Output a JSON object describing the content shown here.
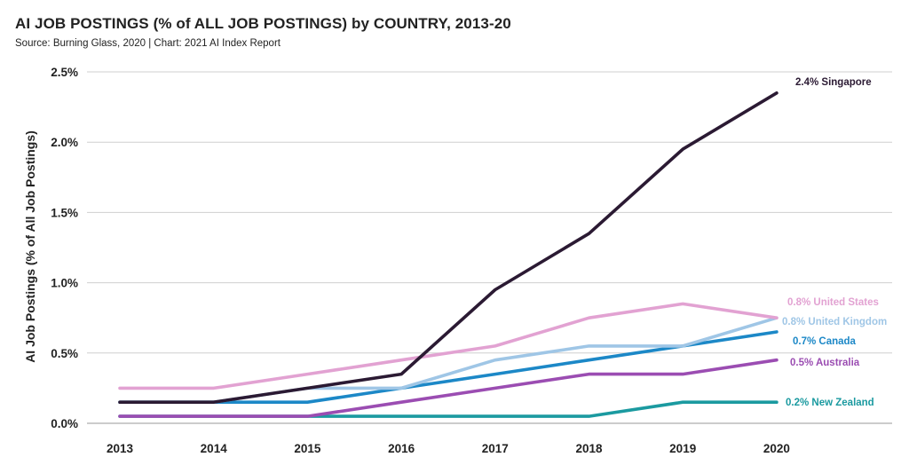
{
  "chart_data": {
    "type": "line",
    "title": "AI JOB POSTINGS (% of ALL JOB POSTINGS) by COUNTRY, 2013-20",
    "subtitle": "Source: Burning Glass, 2020 | Chart: 2021 AI Index Report",
    "xlabel": "",
    "ylabel": "AI Job Postings (% of  All Job Postings)",
    "x": [
      "2013",
      "2014",
      "2015",
      "2016",
      "2017",
      "2018",
      "2019",
      "2020"
    ],
    "ylim": [
      0,
      2.5
    ],
    "yticks": [
      0,
      0.5,
      1.0,
      1.5,
      2.0,
      2.5
    ],
    "ytick_labels": [
      "0.0%",
      "0.5%",
      "1.0%",
      "1.5%",
      "2.0%",
      "2.5%"
    ],
    "grid": "horizontal",
    "series": [
      {
        "name": "New Zealand",
        "label": "0.2% New Zealand",
        "color": "#1b9aa0",
        "values": [
          0.05,
          0.05,
          0.05,
          0.05,
          0.05,
          0.05,
          0.15,
          0.15
        ]
      },
      {
        "name": "Australia",
        "label": "0.5% Australia",
        "color": "#9b4db2",
        "values": [
          0.05,
          0.05,
          0.05,
          0.15,
          0.25,
          0.35,
          0.35,
          0.45
        ]
      },
      {
        "name": "Canada",
        "label": "0.7% Canada",
        "color": "#1c88c7",
        "values": [
          0.15,
          0.15,
          0.15,
          0.25,
          0.35,
          0.45,
          0.55,
          0.65
        ]
      },
      {
        "name": "United Kingdom",
        "label": "0.8% United Kingdom",
        "color": "#9fc6e6",
        "values": [
          0.15,
          0.15,
          0.25,
          0.25,
          0.45,
          0.55,
          0.55,
          0.75
        ]
      },
      {
        "name": "United States",
        "label": "0.8% United States",
        "color": "#e2a2d2",
        "values": [
          0.25,
          0.25,
          0.35,
          0.45,
          0.55,
          0.75,
          0.85,
          0.75
        ]
      },
      {
        "name": "Singapore",
        "label": "2.4% Singapore",
        "color": "#2b1a33",
        "values": [
          0.15,
          0.15,
          0.25,
          0.35,
          0.95,
          1.35,
          1.95,
          2.35
        ]
      }
    ]
  }
}
